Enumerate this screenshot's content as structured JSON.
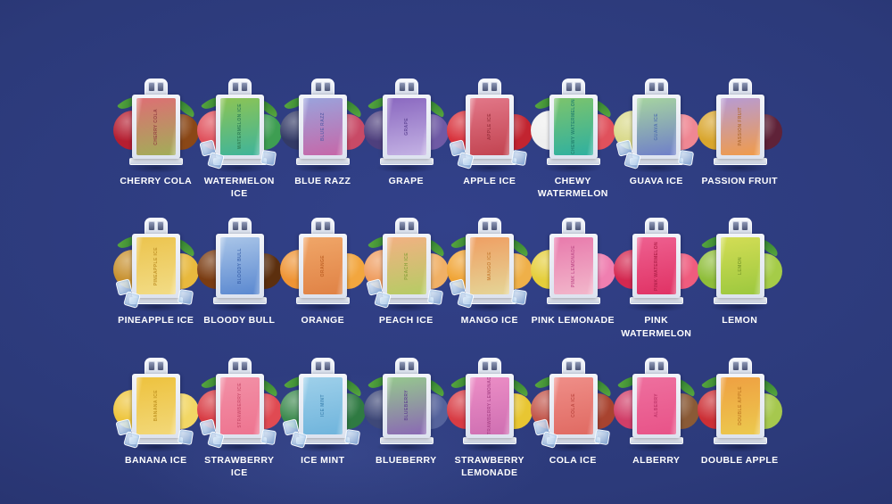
{
  "background": {
    "center": "#32418a",
    "mid": "#2c3a7a",
    "edge": "#20295c"
  },
  "label_color": "#ffffff",
  "device_frame_color": "#f2f4f9",
  "products": [
    {
      "name": "Cherry Cola",
      "label": "CHERRY COLA",
      "pod_top": "#dd6f74",
      "pod_bottom": "#a2ad58",
      "pod_text": "#933d42",
      "fruit_left": "#b51e30",
      "fruit_right": "#8a4716",
      "ice": false,
      "leaf": true
    },
    {
      "name": "Watermelon Ice",
      "label": "WATERMELON ICE",
      "pod_top": "#8cc455",
      "pod_bottom": "#3fb49a",
      "pod_text": "#2e7d52",
      "fruit_left": "#e0515c",
      "fruit_right": "#3e9e52",
      "ice": true,
      "leaf": true
    },
    {
      "name": "Blue Razz",
      "label": "BLUE RAZZ",
      "pod_top": "#9aa3dc",
      "pod_bottom": "#c667a8",
      "pod_text": "#5a5ea8",
      "fruit_left": "#333a66",
      "fruit_right": "#c84a66",
      "ice": false,
      "leaf": true
    },
    {
      "name": "Grape",
      "label": "GRAPE",
      "pod_top": "#8a68c0",
      "pod_bottom": "#c4b2e4",
      "pod_text": "#5e4494",
      "fruit_left": "#4e3f7d",
      "fruit_right": "#6f5aa5",
      "ice": false,
      "leaf": true
    },
    {
      "name": "Apple Ice",
      "label": "APPLE ICE",
      "pod_top": "#e27788",
      "pod_bottom": "#c24350",
      "pod_text": "#99303c",
      "fruit_left": "#d8323c",
      "fruit_right": "#c22430",
      "ice": true,
      "leaf": false
    },
    {
      "name": "Chewy Watermelon",
      "label": "CHEWY\nWATERMELON",
      "pod_top": "#7cc46c",
      "pod_bottom": "#2fb0a0",
      "pod_text": "#23806f",
      "fruit_left": "#efefef",
      "fruit_right": "#e0515c",
      "ice": false,
      "leaf": true
    },
    {
      "name": "Guava Ice",
      "label": "GUAVA ICE",
      "pod_top": "#a6d4a0",
      "pod_bottom": "#6f7fc9",
      "pod_text": "#4f6fae",
      "fruit_left": "#d9d98a",
      "fruit_right": "#ef8793",
      "ice": true,
      "leaf": false
    },
    {
      "name": "Passion Fruit",
      "label": "PASSION FRUIT",
      "pod_top": "#b79bd4",
      "pod_bottom": "#f09b4a",
      "pod_text": "#b06a2e",
      "fruit_left": "#d9a62e",
      "fruit_right": "#5f2238",
      "ice": false,
      "leaf": false
    },
    {
      "name": "Pineapple Ice",
      "label": "PINEAPPLE ICE",
      "pod_top": "#ecc44e",
      "pod_bottom": "#f2dc86",
      "pod_text": "#bd8f25",
      "fruit_left": "#c8912f",
      "fruit_right": "#e8b93e",
      "ice": true,
      "leaf": true
    },
    {
      "name": "Bloody Bull",
      "label": "BLOODY BULL",
      "pod_top": "#a9c5e8",
      "pod_bottom": "#5a88d0",
      "pod_text": "#3c64ad",
      "fruit_left": "#7a3c12",
      "fruit_right": "#5c2f0e",
      "ice": false,
      "leaf": false
    },
    {
      "name": "Orange",
      "label": "ORANGE",
      "pod_top": "#f0a668",
      "pod_bottom": "#e08245",
      "pod_text": "#bc5f23",
      "fruit_left": "#ef9434",
      "fruit_right": "#f2a63e",
      "ice": false,
      "leaf": false
    },
    {
      "name": "Peach Ice",
      "label": "PEACH ICE",
      "pod_top": "#f2b183",
      "pod_bottom": "#b5cc64",
      "pod_text": "#8ba13c",
      "fruit_left": "#ef9d5f",
      "fruit_right": "#f0b066",
      "ice": true,
      "leaf": true
    },
    {
      "name": "Mango Ice",
      "label": "MANGO ICE",
      "pod_top": "#ef9f63",
      "pod_bottom": "#e5d597",
      "pod_text": "#c77f35",
      "fruit_left": "#f0a435",
      "fruit_right": "#efb049",
      "ice": true,
      "leaf": true
    },
    {
      "name": "Pink Lemonade",
      "label": "PINK LEMONADE",
      "pod_top": "#e87aac",
      "pod_bottom": "#f2b7cb",
      "pod_text": "#c04f8b",
      "fruit_left": "#e5ce3a",
      "fruit_right": "#ef7fb0",
      "ice": false,
      "leaf": false
    },
    {
      "name": "Pink Watermelon",
      "label": "PINK\nWATERMELON",
      "pod_top": "#ee6090",
      "pod_bottom": "#e03264",
      "pod_text": "#ad1f47",
      "fruit_left": "#d42850",
      "fruit_right": "#ef5c7e",
      "ice": false,
      "leaf": false
    },
    {
      "name": "Lemon",
      "label": "LEMON",
      "pod_top": "#d3dd55",
      "pod_bottom": "#9cc83e",
      "pod_text": "#7d9c2b",
      "fruit_left": "#8fbe3a",
      "fruit_right": "#a5cc48",
      "ice": false,
      "leaf": true
    },
    {
      "name": "Banana Ice",
      "label": "BANANA ICE",
      "pod_top": "#eec23e",
      "pod_bottom": "#f2d879",
      "pod_text": "#bf9220",
      "fruit_left": "#eec53c",
      "fruit_right": "#f2d765",
      "ice": true,
      "leaf": false
    },
    {
      "name": "Strawberry Ice",
      "label": "STRAWBERRY ICE",
      "pod_top": "#f290a6",
      "pod_bottom": "#ee7490",
      "pod_text": "#cc4f6d",
      "fruit_left": "#d83c44",
      "fruit_right": "#e04a52",
      "ice": true,
      "leaf": true
    },
    {
      "name": "Ice Mint",
      "label": "ICE MINT",
      "pod_top": "#9ed0ea",
      "pod_bottom": "#6fb4dc",
      "pod_text": "#4187b4",
      "fruit_left": "#3c8a4e",
      "fruit_right": "#2f7a42",
      "ice": true,
      "leaf": true
    },
    {
      "name": "Blueberry",
      "label": "BLUEBERRY",
      "pod_top": "#96c88e",
      "pod_bottom": "#8a68b4",
      "pod_text": "#5f4390",
      "fruit_left": "#3e4878",
      "fruit_right": "#55639c",
      "ice": false,
      "leaf": true
    },
    {
      "name": "Strawberry Lemonade",
      "label": "STRAWBERRY\nLEMONADE",
      "pod_top": "#ec8ec6",
      "pod_bottom": "#cf6fb2",
      "pod_text": "#aa4589",
      "fruit_left": "#d83c44",
      "fruit_right": "#e8c632",
      "ice": false,
      "leaf": true
    },
    {
      "name": "Cola Ice",
      "label": "COLA ICE",
      "pod_top": "#ef8e88",
      "pod_bottom": "#e06a62",
      "pod_text": "#bb463f",
      "fruit_left": "#c2554a",
      "fruit_right": "#a8432f",
      "ice": true,
      "leaf": true
    },
    {
      "name": "Alberry",
      "label": "ALBERRY",
      "pod_top": "#ee6f9e",
      "pod_bottom": "#e85388",
      "pod_text": "#bd3467",
      "fruit_left": "#d13e68",
      "fruit_right": "#8a5a36",
      "ice": false,
      "leaf": true
    },
    {
      "name": "Double Apple",
      "label": "DOUBLE APPLE",
      "pod_top": "#efa042",
      "pod_bottom": "#ecc94e",
      "pod_text": "#c07a23",
      "fruit_left": "#cc2f35",
      "fruit_right": "#a6c84e",
      "ice": false,
      "leaf": true
    }
  ]
}
